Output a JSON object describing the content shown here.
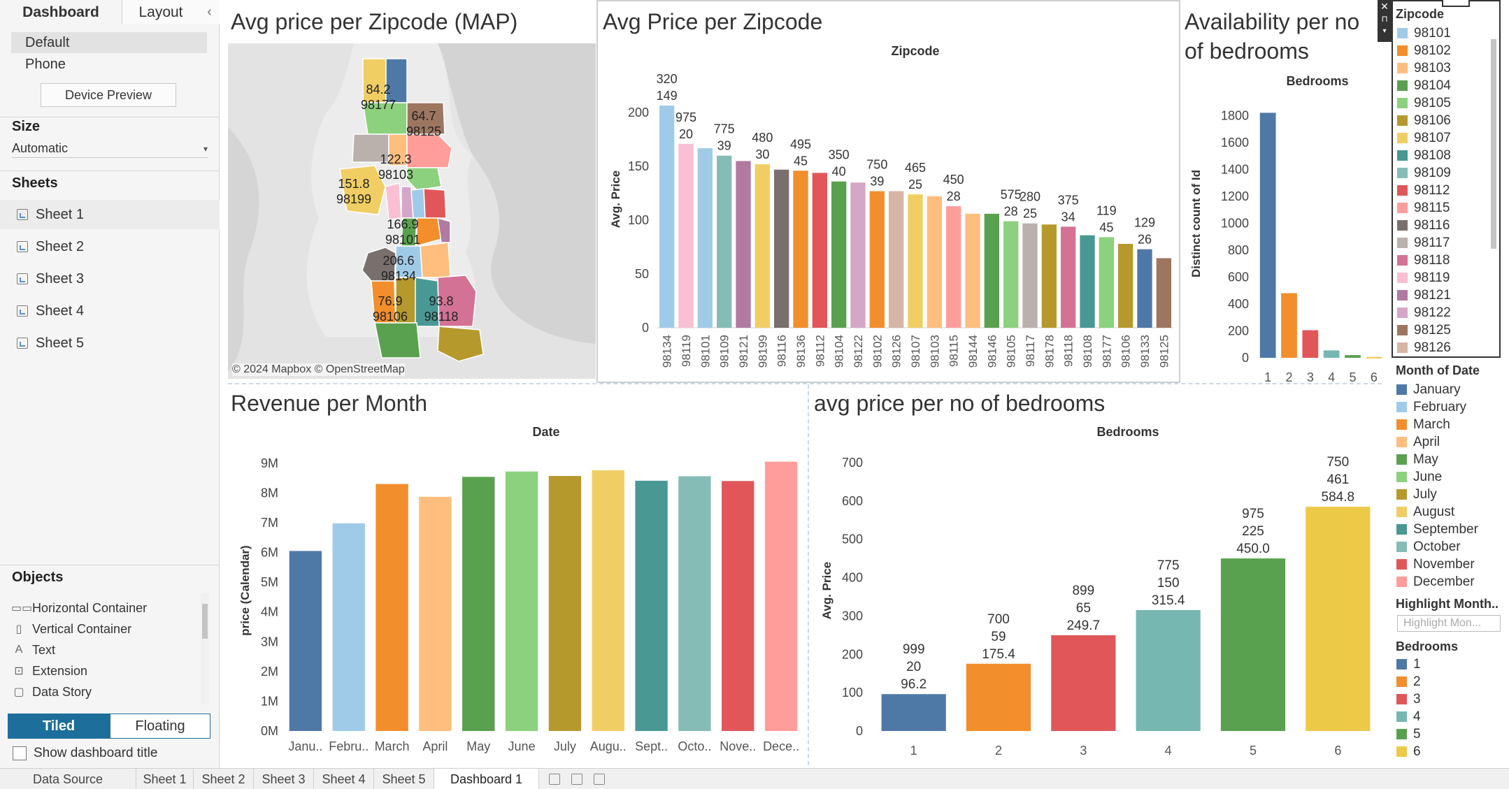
{
  "tabs": {
    "dashboard": "Dashboard",
    "layout": "Layout"
  },
  "device": {
    "default": "Default",
    "phone": "Phone",
    "preview_button": "Device Preview"
  },
  "size": {
    "heading": "Size",
    "value": "Automatic"
  },
  "sheets": {
    "heading": "Sheets",
    "items": [
      "Sheet 1",
      "Sheet 2",
      "Sheet 3",
      "Sheet 4",
      "Sheet 5"
    ]
  },
  "objects": {
    "heading": "Objects",
    "items": [
      {
        "icon": "horizontal-container-icon",
        "label": "Horizontal Container"
      },
      {
        "icon": "vertical-container-icon",
        "label": "Vertical Container"
      },
      {
        "icon": "text-icon",
        "label": "Text"
      },
      {
        "icon": "extension-icon",
        "label": "Extension"
      },
      {
        "icon": "data-story-icon",
        "label": "Data Story"
      }
    ]
  },
  "layout_mode": {
    "tiled": "Tiled",
    "floating": "Floating"
  },
  "show_title": "Show dashboard title",
  "bottom_tabs": [
    "Data Source",
    "Sheet 1",
    "Sheet 2",
    "Sheet 3",
    "Sheet 4",
    "Sheet 5",
    "Dashboard 1"
  ],
  "map_zone": {
    "title": "Avg price per Zipcode (MAP)",
    "attribution": "© 2024 Mapbox © OpenStreetMap",
    "labels": [
      {
        "value": "84.2",
        "zip": "98177"
      },
      {
        "value": "64.7",
        "zip": "98125"
      },
      {
        "value": "122.3",
        "zip": "98103"
      },
      {
        "value": "151.8",
        "zip": "98199"
      },
      {
        "value": "166.9",
        "zip": "98101"
      },
      {
        "value": "206.6",
        "zip": "98134"
      },
      {
        "value": "76.9",
        "zip": "98106"
      },
      {
        "value": "93.8",
        "zip": "98118"
      }
    ]
  },
  "zip_chart": {
    "title": "Avg Price per Zipcode",
    "chart_data": {
      "type": "bar",
      "title": "Zipcode",
      "ylabel": "Avg. Price",
      "ylim": [
        0,
        230
      ],
      "yticks": [
        0,
        50,
        100,
        150,
        200
      ],
      "categories": [
        "98134",
        "98119",
        "98101",
        "98109",
        "98121",
        "98199",
        "98116",
        "98136",
        "98112",
        "98104",
        "98122",
        "98102",
        "98126",
        "98107",
        "98103",
        "98115",
        "98144",
        "98146",
        "98105",
        "98117",
        "98178",
        "98118",
        "98108",
        "98177",
        "98106",
        "98133",
        "98125"
      ],
      "values": [
        206.6,
        171,
        166.9,
        160,
        155,
        152,
        147,
        146,
        144,
        136,
        135,
        127,
        127,
        124,
        122.3,
        113,
        106,
        106,
        99,
        97,
        96,
        94,
        86,
        84.2,
        78,
        73,
        64.7
      ],
      "colors": [
        "#a0cbe8",
        "#fabfd2",
        "#a0cbe8",
        "#86bcb6",
        "#b07aa1",
        "#f1ce63",
        "#79706e",
        "#f28e2b",
        "#e15759",
        "#59a14f",
        "#d4a6c8",
        "#f28e2b",
        "#d7b5a6",
        "#f1ce63",
        "#ffbe7d",
        "#ff9d9a",
        "#ffbe7d",
        "#59a14f",
        "#8cd17d",
        "#bab0ac",
        "#b6992d",
        "#d37295",
        "#499894",
        "#8cd17d",
        "#b6992d",
        "#4e79a7",
        "#9d7660"
      ],
      "labels": [
        [
          "320",
          "149"
        ],
        [
          "975",
          "20"
        ],
        [],
        [
          "775",
          "39"
        ],
        [],
        [
          "480",
          "30"
        ],
        [],
        [
          "495",
          "45"
        ],
        [],
        [
          "350",
          "40"
        ],
        [],
        [
          "750",
          "39"
        ],
        [],
        [
          "465",
          "25"
        ],
        [],
        [
          "450",
          "28"
        ],
        [],
        [],
        [
          "575",
          "28"
        ],
        [
          "280",
          "25"
        ],
        [],
        [
          "375",
          "34"
        ],
        [],
        [
          "119",
          "45"
        ],
        [],
        [
          "129",
          "26"
        ],
        []
      ]
    }
  },
  "bed_avail": {
    "title": "Availability per no of bedrooms",
    "chart_data": {
      "type": "bar",
      "title": "Bedrooms",
      "ylabel": "Distinct count of Id",
      "ylim": [
        0,
        1900
      ],
      "yticks": [
        0,
        200,
        400,
        600,
        800,
        1000,
        1200,
        1400,
        1600,
        1800
      ],
      "categories": [
        "1",
        "2",
        "3",
        "4",
        "5",
        "6"
      ],
      "values": [
        1820,
        480,
        205,
        55,
        20,
        6
      ],
      "colors": [
        "#4e79a7",
        "#f28e2b",
        "#e15759",
        "#76b7b2",
        "#59a14f",
        "#edc948"
      ]
    }
  },
  "revenue": {
    "title": "Revenue per Month",
    "chart_data": {
      "type": "bar",
      "title": "Date",
      "ylabel": "price (Calendar)",
      "ylim": [
        0,
        9300000
      ],
      "yticks": [
        "0M",
        "1M",
        "2M",
        "3M",
        "4M",
        "5M",
        "6M",
        "7M",
        "8M",
        "9M"
      ],
      "categories": [
        "Janu..",
        "Febru..",
        "March",
        "April",
        "May",
        "June",
        "July",
        "Augu..",
        "Sept..",
        "Octo..",
        "Nove..",
        "Dece.."
      ],
      "values": [
        6050000,
        6980000,
        8300000,
        7870000,
        8540000,
        8720000,
        8570000,
        8760000,
        8410000,
        8560000,
        8400000,
        9050000
      ],
      "colors": [
        "#4e79a7",
        "#a0cbe8",
        "#f28e2b",
        "#ffbe7d",
        "#59a14f",
        "#8cd17d",
        "#b6992d",
        "#f1ce63",
        "#499894",
        "#86bcb6",
        "#e15759",
        "#ff9d9a"
      ]
    }
  },
  "bed_price": {
    "title": "avg price per no of bedrooms",
    "chart_data": {
      "type": "bar",
      "title": "Bedrooms",
      "ylabel": "Avg. Price",
      "ylim": [
        0,
        740
      ],
      "yticks": [
        0,
        100,
        200,
        300,
        400,
        500,
        600,
        700
      ],
      "categories": [
        "1",
        "2",
        "3",
        "4",
        "5",
        "6"
      ],
      "values": [
        96.2,
        175.4,
        249.7,
        315.4,
        450.0,
        584.8
      ],
      "colors": [
        "#4e79a7",
        "#f28e2b",
        "#e15759",
        "#76b7b2",
        "#59a14f",
        "#edc948"
      ],
      "labels": [
        [
          "999",
          "20",
          "96.2"
        ],
        [
          "700",
          "59",
          "175.4"
        ],
        [
          "899",
          "65",
          "249.7"
        ],
        [
          "775",
          "150",
          "315.4"
        ],
        [
          "975",
          "225",
          "450.0"
        ],
        [
          "750",
          "461",
          "584.8"
        ]
      ]
    }
  },
  "legend": {
    "zip_title": "Zipcode",
    "zips": [
      {
        "label": "98101",
        "color": "#a0cbe8"
      },
      {
        "label": "98102",
        "color": "#f28e2b"
      },
      {
        "label": "98103",
        "color": "#ffbe7d"
      },
      {
        "label": "98104",
        "color": "#59a14f"
      },
      {
        "label": "98105",
        "color": "#8cd17d"
      },
      {
        "label": "98106",
        "color": "#b6992d"
      },
      {
        "label": "98107",
        "color": "#f1ce63"
      },
      {
        "label": "98108",
        "color": "#499894"
      },
      {
        "label": "98109",
        "color": "#86bcb6"
      },
      {
        "label": "98112",
        "color": "#e15759"
      },
      {
        "label": "98115",
        "color": "#ff9d9a"
      },
      {
        "label": "98116",
        "color": "#79706e"
      },
      {
        "label": "98117",
        "color": "#bab0ac"
      },
      {
        "label": "98118",
        "color": "#d37295"
      },
      {
        "label": "98119",
        "color": "#fabfd2"
      },
      {
        "label": "98121",
        "color": "#b07aa1"
      },
      {
        "label": "98122",
        "color": "#d4a6c8"
      },
      {
        "label": "98125",
        "color": "#9d7660"
      },
      {
        "label": "98126",
        "color": "#d7b5a6"
      }
    ],
    "month_title": "Month of Date",
    "months": [
      {
        "label": "January",
        "color": "#4e79a7"
      },
      {
        "label": "February",
        "color": "#a0cbe8"
      },
      {
        "label": "March",
        "color": "#f28e2b"
      },
      {
        "label": "April",
        "color": "#ffbe7d"
      },
      {
        "label": "May",
        "color": "#59a14f"
      },
      {
        "label": "June",
        "color": "#8cd17d"
      },
      {
        "label": "July",
        "color": "#b6992d"
      },
      {
        "label": "August",
        "color": "#f1ce63"
      },
      {
        "label": "September",
        "color": "#499894"
      },
      {
        "label": "October",
        "color": "#86bcb6"
      },
      {
        "label": "November",
        "color": "#e15759"
      },
      {
        "label": "December",
        "color": "#ff9d9a"
      }
    ],
    "highlight_title": "Highlight Month..",
    "highlight_placeholder": "Highlight Mon...",
    "bed_title": "Bedrooms",
    "beds": [
      {
        "label": "1",
        "color": "#4e79a7"
      },
      {
        "label": "2",
        "color": "#f28e2b"
      },
      {
        "label": "3",
        "color": "#e15759"
      },
      {
        "label": "4",
        "color": "#76b7b2"
      },
      {
        "label": "5",
        "color": "#59a14f"
      },
      {
        "label": "6",
        "color": "#edc948"
      }
    ]
  }
}
